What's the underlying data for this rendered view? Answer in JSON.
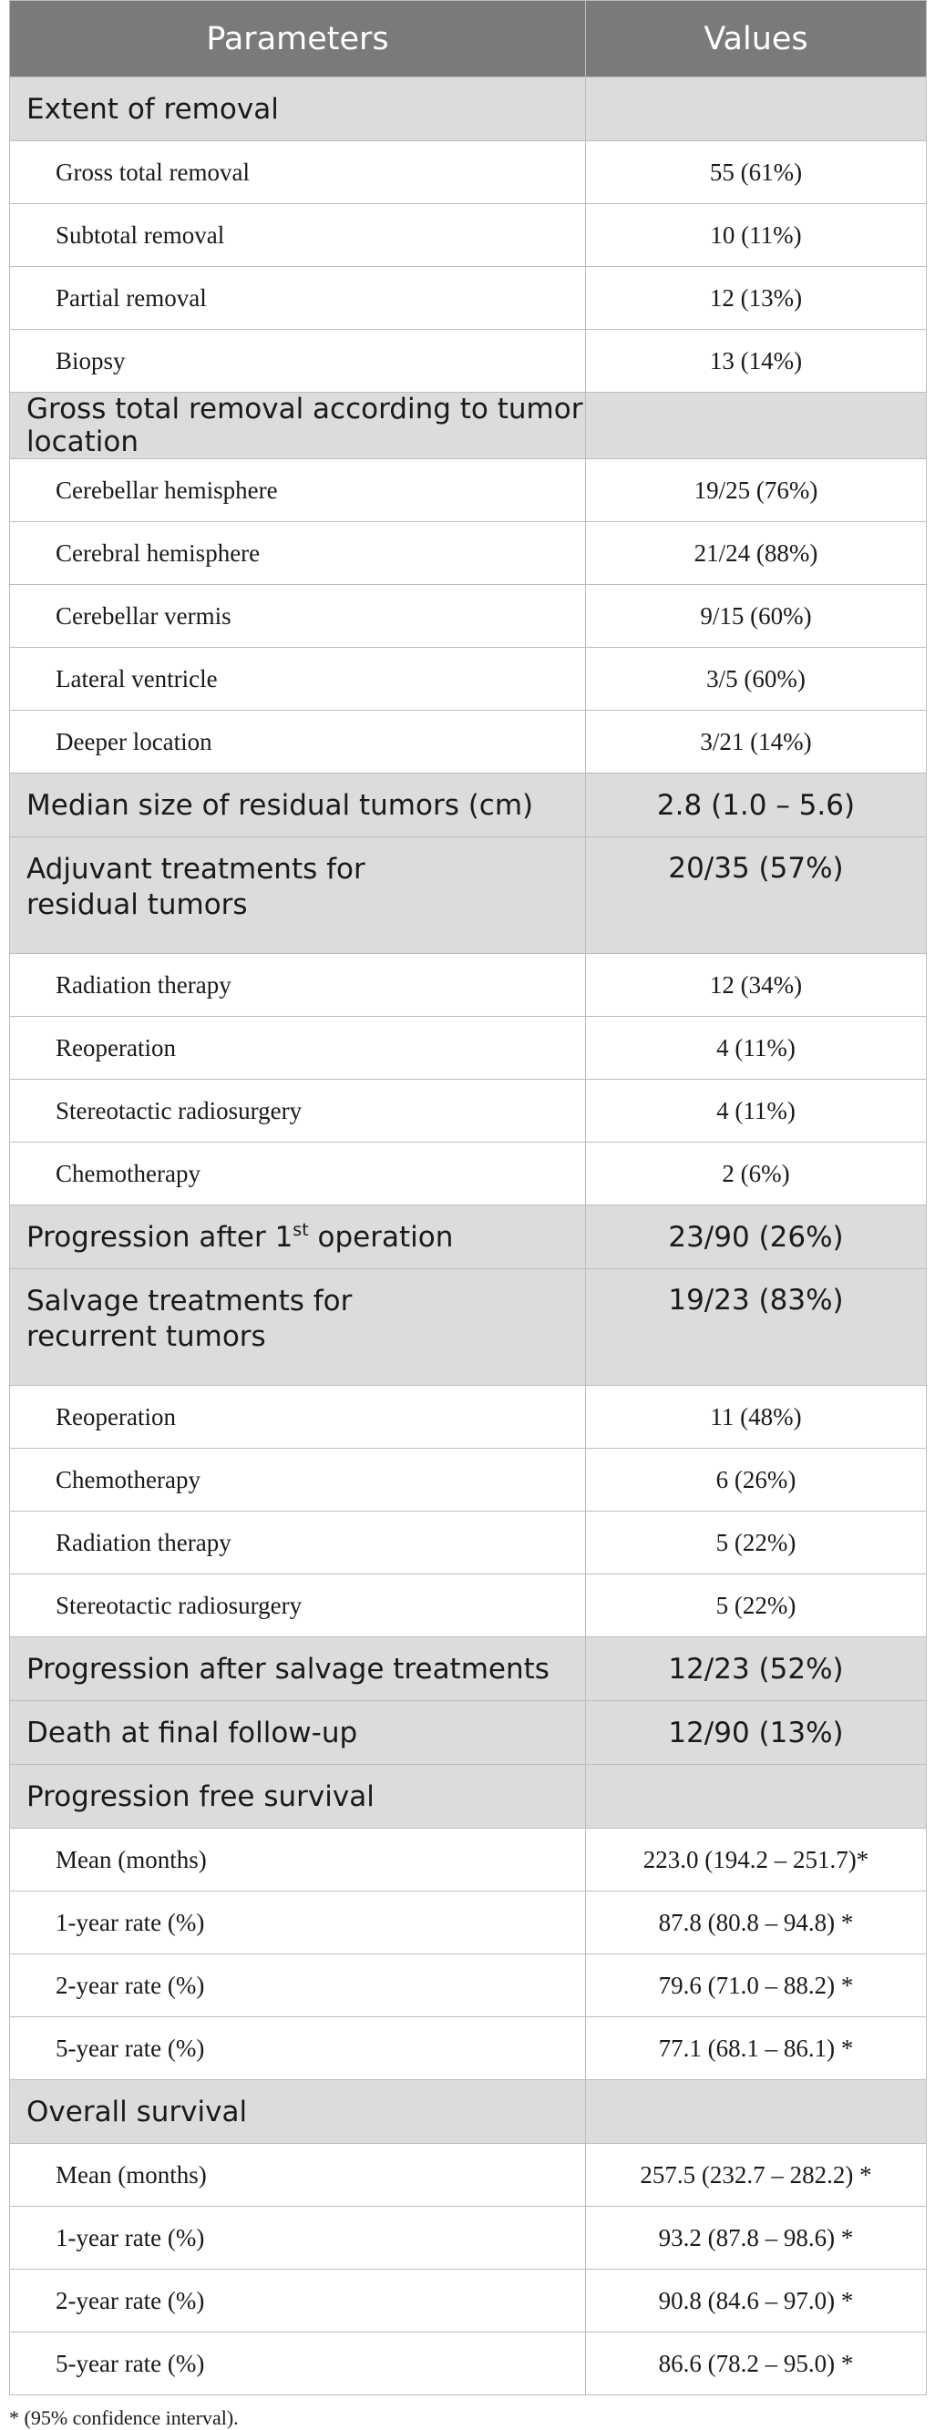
{
  "table": {
    "header": {
      "parameters": "Parameters",
      "values": "Values"
    },
    "rows": [
      {
        "type": "section",
        "label": "Extent of removal",
        "value": ""
      },
      {
        "type": "sub",
        "label": "Gross total removal",
        "value": "55 (61%)"
      },
      {
        "type": "sub",
        "label": "Subtotal removal",
        "value": "10 (11%)"
      },
      {
        "type": "sub",
        "label": "Partial removal",
        "value": "12 (13%)"
      },
      {
        "type": "sub",
        "label": "Biopsy",
        "value": "13 (14%)"
      },
      {
        "type": "section",
        "label": "Gross total removal according to tumor location",
        "value": ""
      },
      {
        "type": "sub",
        "label": "Cerebellar hemisphere",
        "value": "19/25 (76%)"
      },
      {
        "type": "sub",
        "label": "Cerebral hemisphere",
        "value": "21/24 (88%)"
      },
      {
        "type": "sub",
        "label": "Cerebellar vermis",
        "value": "9/15 (60%)"
      },
      {
        "type": "sub",
        "label": "Lateral ventricle",
        "value": "3/5 (60%)"
      },
      {
        "type": "sub",
        "label": "Deeper location",
        "value": "3/21 (14%)"
      },
      {
        "type": "section",
        "label": "Median size of residual tumors (cm)",
        "value": "2.8 (1.0 – 5.6)"
      },
      {
        "type": "section-tall",
        "label_line1": "Adjuvant treatments for",
        "label_line2": "residual tumors",
        "value": "20/35 (57%)"
      },
      {
        "type": "sub",
        "label": "Radiation therapy",
        "value": "12 (34%)"
      },
      {
        "type": "sub",
        "label": "Reoperation",
        "value": "4 (11%)"
      },
      {
        "type": "sub",
        "label": "Stereotactic radiosurgery",
        "value": "4 (11%)"
      },
      {
        "type": "sub",
        "label": "Chemotherapy",
        "value": "2 (6%)"
      },
      {
        "type": "section-sup",
        "label_pre": "Progression after 1",
        "label_sup": "st",
        "label_post": " operation",
        "value": "23/90 (26%)"
      },
      {
        "type": "section-tall",
        "label_line1": "Salvage treatments for",
        "label_line2": "recurrent tumors",
        "value": "19/23 (83%)"
      },
      {
        "type": "sub",
        "label": "Reoperation",
        "value": "11 (48%)"
      },
      {
        "type": "sub",
        "label": "Chemotherapy",
        "value": "6 (26%)"
      },
      {
        "type": "sub",
        "label": "Radiation therapy",
        "value": "5 (22%)"
      },
      {
        "type": "sub",
        "label": "Stereotactic radiosurgery",
        "value": "5 (22%)"
      },
      {
        "type": "section",
        "label": "Progression after salvage treatments",
        "value": "12/23 (52%)"
      },
      {
        "type": "section",
        "label": "Death at final follow-up",
        "value": "12/90 (13%)"
      },
      {
        "type": "section",
        "label": "Progression free survival",
        "value": ""
      },
      {
        "type": "sub",
        "label": "Mean (months)",
        "value": "223.0 (194.2 – 251.7)*"
      },
      {
        "type": "sub",
        "label": "1-year rate (%)",
        "value": "87.8 (80.8 – 94.8) *"
      },
      {
        "type": "sub",
        "label": "2-year rate (%)",
        "value": "79.6 (71.0 – 88.2) *"
      },
      {
        "type": "sub",
        "label": "5-year rate (%)",
        "value": "77.1 (68.1 – 86.1) *"
      },
      {
        "type": "section",
        "label": "Overall survival",
        "value": ""
      },
      {
        "type": "sub",
        "label": "Mean (months)",
        "value": "257.5 (232.7 – 282.2) *"
      },
      {
        "type": "sub",
        "label": "1-year rate (%)",
        "value": "93.2 (87.8 – 98.6) *"
      },
      {
        "type": "sub",
        "label": "2-year rate (%)",
        "value": "90.8 (84.6 – 97.0) *"
      },
      {
        "type": "sub",
        "label": "5-year rate (%)",
        "value": "86.6 (78.2 – 95.0) *"
      }
    ]
  },
  "footnote": "* (95% confidence interval)."
}
